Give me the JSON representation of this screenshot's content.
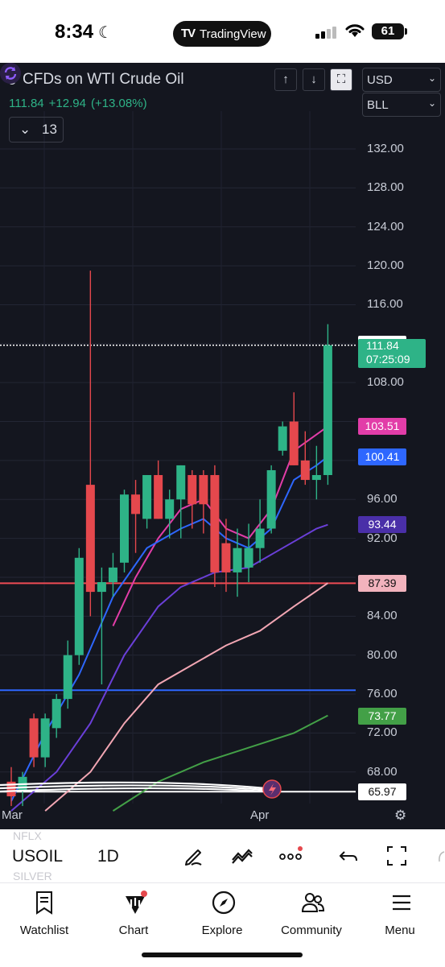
{
  "status_bar": {
    "time": "8:34",
    "app_pill_logo": "TV",
    "app_pill": "TradingView",
    "battery": "61"
  },
  "header": {
    "symbol_title": "CFDs on WTI Crude Oil",
    "last_price": "111.84",
    "change": "+12.94",
    "change_pct": "(+13.08%)",
    "indicator_count": "13",
    "currency": "USD",
    "unit": "BLL"
  },
  "colors": {
    "background": "#14161f",
    "up": "#2eb387",
    "down": "#e5484d",
    "current_price": "#2eb387",
    "ma_magenta": "#e23da8",
    "ma_blue": "#2e67ff",
    "ma_purple": "#6a3fd8",
    "ma_pink": "#f2a6b3",
    "ma_green": "#43a047",
    "hline_red": "#ef4b55",
    "hline_blue": "#2e67ff"
  },
  "chart": {
    "y_ticks": [
      "132.00",
      "128.00",
      "124.00",
      "120.00",
      "116.00",
      "108.00",
      "96.00",
      "92.00",
      "84.00",
      "80.00",
      "76.00",
      "72.00",
      "68.00"
    ],
    "price_badges": [
      {
        "label": "111.97",
        "value": 111.97,
        "bg": "#ffffff",
        "fg": "#111111"
      },
      {
        "label": "103.51",
        "value": 103.51,
        "bg": "#e23da8",
        "fg": "#ffffff"
      },
      {
        "label": "100.41",
        "value": 100.41,
        "bg": "#2e67ff",
        "fg": "#ffffff"
      },
      {
        "label": "93.44",
        "value": 93.44,
        "bg": "#4a2fa8",
        "fg": "#ffffff"
      },
      {
        "label": "87.39",
        "value": 87.39,
        "bg": "#f2b3bd",
        "fg": "#111111"
      },
      {
        "label": "73.77",
        "value": 73.77,
        "bg": "#43a047",
        "fg": "#ffffff"
      },
      {
        "label": "65.97",
        "value": 65.97,
        "bg": "#ffffff",
        "fg": "#111111"
      }
    ],
    "current_badge": {
      "price": "111.84",
      "countdown": "07:25:09"
    },
    "x_labels": [
      "Mar",
      "Apr"
    ]
  },
  "chart_data": {
    "type": "candlestick",
    "symbol": "USOIL",
    "interval": "1D",
    "ylim": [
      64,
      136
    ],
    "candles": [
      {
        "o": 67.0,
        "h": 68.5,
        "l": 64.5,
        "c": 65.5
      },
      {
        "o": 66.0,
        "h": 68.0,
        "l": 64.5,
        "c": 67.5
      },
      {
        "o": 73.5,
        "h": 74.0,
        "l": 68.5,
        "c": 69.5
      },
      {
        "o": 69.5,
        "h": 74.0,
        "l": 68.5,
        "c": 73.5
      },
      {
        "o": 72.5,
        "h": 76.0,
        "l": 71.5,
        "c": 75.5
      },
      {
        "o": 75.5,
        "h": 81.5,
        "l": 74.5,
        "c": 80.0
      },
      {
        "o": 80.0,
        "h": 91.0,
        "l": 79.0,
        "c": 90.0
      },
      {
        "o": 97.5,
        "h": 119.5,
        "l": 84.0,
        "c": 86.5
      },
      {
        "o": 86.5,
        "h": 89.0,
        "l": 77.0,
        "c": 87.5
      },
      {
        "o": 87.5,
        "h": 90.5,
        "l": 86.0,
        "c": 89.0
      },
      {
        "o": 89.5,
        "h": 97.0,
        "l": 88.5,
        "c": 96.5
      },
      {
        "o": 96.5,
        "h": 98.0,
        "l": 90.5,
        "c": 94.5
      },
      {
        "o": 94.0,
        "h": 98.5,
        "l": 93.0,
        "c": 98.5
      },
      {
        "o": 98.5,
        "h": 100.0,
        "l": 94.0,
        "c": 94.0
      },
      {
        "o": 94.0,
        "h": 97.0,
        "l": 92.0,
        "c": 96.0
      },
      {
        "o": 96.0,
        "h": 99.5,
        "l": 92.0,
        "c": 99.5
      },
      {
        "o": 98.5,
        "h": 99.0,
        "l": 93.0,
        "c": 95.5
      },
      {
        "o": 98.5,
        "h": 99.0,
        "l": 92.5,
        "c": 95.5
      },
      {
        "o": 98.5,
        "h": 99.5,
        "l": 87.0,
        "c": 88.5
      },
      {
        "o": 91.5,
        "h": 94.0,
        "l": 86.5,
        "c": 88.5
      },
      {
        "o": 88.5,
        "h": 93.0,
        "l": 86.0,
        "c": 91.0
      },
      {
        "o": 89.0,
        "h": 93.5,
        "l": 87.5,
        "c": 91.0
      },
      {
        "o": 91.0,
        "h": 96.0,
        "l": 89.5,
        "c": 93.0
      },
      {
        "o": 93.0,
        "h": 99.5,
        "l": 92.5,
        "c": 99.0
      },
      {
        "o": 101.0,
        "h": 104.0,
        "l": 100.5,
        "c": 103.5
      },
      {
        "o": 104.0,
        "h": 107.0,
        "l": 99.5,
        "c": 99.5
      },
      {
        "o": 100.0,
        "h": 103.0,
        "l": 97.5,
        "c": 98.0
      },
      {
        "o": 98.0,
        "h": 101.5,
        "l": 96.0,
        "c": 98.5
      },
      {
        "o": 98.5,
        "h": 114.0,
        "l": 97.5,
        "c": 111.84
      }
    ],
    "moving_averages": [
      {
        "color": "#e23da8",
        "last": 103.51,
        "points": [
          [
            9,
            83
          ],
          [
            11,
            88
          ],
          [
            13,
            92
          ],
          [
            15,
            95
          ],
          [
            17,
            96
          ],
          [
            19,
            93
          ],
          [
            21,
            92
          ],
          [
            23,
            95
          ],
          [
            25,
            101
          ],
          [
            28,
            103.5
          ]
        ]
      },
      {
        "color": "#2e67ff",
        "last": 100.41,
        "points": [
          [
            0,
            65
          ],
          [
            3,
            72
          ],
          [
            6,
            78
          ],
          [
            9,
            86
          ],
          [
            12,
            91
          ],
          [
            15,
            93
          ],
          [
            17,
            94
          ],
          [
            19,
            92
          ],
          [
            21,
            91
          ],
          [
            23,
            93
          ],
          [
            25,
            98
          ],
          [
            27,
            99.5
          ],
          [
            28,
            100.4
          ]
        ]
      },
      {
        "color": "#6a3fd8",
        "last": 93.44,
        "points": [
          [
            0,
            64
          ],
          [
            4,
            68
          ],
          [
            7,
            73
          ],
          [
            10,
            80
          ],
          [
            13,
            85
          ],
          [
            15,
            87
          ],
          [
            18,
            88.5
          ],
          [
            21,
            89
          ],
          [
            24,
            91
          ],
          [
            27,
            93
          ],
          [
            28,
            93.4
          ]
        ]
      },
      {
        "color": "#f2a6b3",
        "last": 87.39,
        "points": [
          [
            3,
            64
          ],
          [
            7,
            68
          ],
          [
            10,
            73
          ],
          [
            13,
            77
          ],
          [
            16,
            79
          ],
          [
            19,
            81
          ],
          [
            22,
            82.5
          ],
          [
            25,
            85
          ],
          [
            28,
            87.4
          ]
        ]
      },
      {
        "color": "#43a047",
        "last": 73.77,
        "points": [
          [
            9,
            64
          ],
          [
            13,
            67
          ],
          [
            17,
            69
          ],
          [
            21,
            70.5
          ],
          [
            25,
            72
          ],
          [
            28,
            73.8
          ]
        ]
      }
    ],
    "horizontal_lines": [
      {
        "value": 111.84,
        "color": "#ffffff",
        "style": "dotted"
      },
      {
        "value": 87.39,
        "color": "#ef4b55"
      },
      {
        "value": 76.4,
        "color": "#2e67ff"
      },
      {
        "value": 65.97,
        "color": "#ffffff"
      }
    ]
  },
  "toolbar": {
    "ghost_above": "NFLX",
    "symbol": "USOIL",
    "ghost_below": "SILVER",
    "interval": "1D"
  },
  "nav": [
    {
      "label": "Watchlist",
      "icon": "bookmark-icon"
    },
    {
      "label": "Chart",
      "icon": "chart-icon"
    },
    {
      "label": "Explore",
      "icon": "compass-icon"
    },
    {
      "label": "Community",
      "icon": "people-icon"
    },
    {
      "label": "Menu",
      "icon": "hamburger-icon"
    }
  ]
}
